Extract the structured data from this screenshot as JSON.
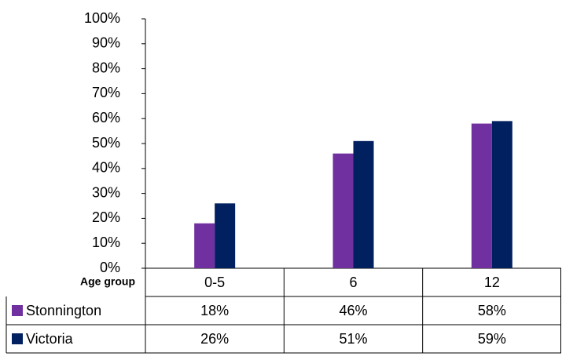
{
  "chart_data": {
    "type": "bar",
    "x_label": "Age group",
    "categories": [
      "0-5",
      "6",
      "12"
    ],
    "series": [
      {
        "name": "Stonnington",
        "color": "#7030a0",
        "values": [
          18,
          46,
          58
        ],
        "value_labels": [
          "18%",
          "46%",
          "58%"
        ]
      },
      {
        "name": "Victoria",
        "color": "#002060",
        "values": [
          26,
          51,
          59
        ],
        "value_labels": [
          "26%",
          "51%",
          "59%"
        ]
      }
    ],
    "ylim": [
      0,
      100
    ],
    "yticks": [
      {
        "value": 0,
        "label": "0%"
      },
      {
        "value": 10,
        "label": "10%"
      },
      {
        "value": 20,
        "label": "20%"
      },
      {
        "value": 30,
        "label": "30%"
      },
      {
        "value": 40,
        "label": "40%"
      },
      {
        "value": 50,
        "label": "50%"
      },
      {
        "value": 60,
        "label": "60%"
      },
      {
        "value": 70,
        "label": "70%"
      },
      {
        "value": 80,
        "label": "80%"
      },
      {
        "value": 90,
        "label": "90%"
      },
      {
        "value": 100,
        "label": "100%"
      }
    ],
    "grid": false
  }
}
